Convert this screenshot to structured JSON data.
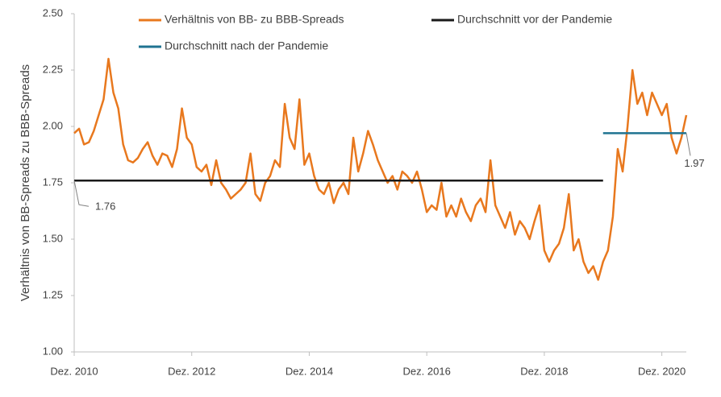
{
  "chart_data": {
    "type": "line",
    "y_label": "Verhältnis von BB-Spreads zu BBB-Spreads",
    "xlim": [
      "2010-12",
      "2021-05"
    ],
    "xticks": [
      {
        "value": "2010-12",
        "label": "Dez. 2010"
      },
      {
        "value": "2012-12",
        "label": "Dez. 2012"
      },
      {
        "value": "2014-12",
        "label": "Dez. 2014"
      },
      {
        "value": "2016-12",
        "label": "Dez. 2016"
      },
      {
        "value": "2018-12",
        "label": "Dez. 2018"
      },
      {
        "value": "2020-12",
        "label": "Dez. 2020"
      }
    ],
    "ylim": [
      1.0,
      2.5
    ],
    "yticks": [
      {
        "value": 1.0,
        "label": "1.00"
      },
      {
        "value": 1.25,
        "label": "1.25"
      },
      {
        "value": 1.5,
        "label": "1.50"
      },
      {
        "value": 1.75,
        "label": "1.75"
      },
      {
        "value": 2.0,
        "label": "2.00"
      },
      {
        "value": 2.25,
        "label": "2.25"
      },
      {
        "value": 2.5,
        "label": "2.50"
      }
    ],
    "x": [
      "2010-12",
      "2011-01",
      "2011-02",
      "2011-03",
      "2011-04",
      "2011-05",
      "2011-06",
      "2011-07",
      "2011-08",
      "2011-09",
      "2011-10",
      "2011-11",
      "2011-12",
      "2012-01",
      "2012-02",
      "2012-03",
      "2012-04",
      "2012-05",
      "2012-06",
      "2012-07",
      "2012-08",
      "2012-09",
      "2012-10",
      "2012-11",
      "2012-12",
      "2013-01",
      "2013-02",
      "2013-03",
      "2013-04",
      "2013-05",
      "2013-06",
      "2013-07",
      "2013-08",
      "2013-09",
      "2013-10",
      "2013-11",
      "2013-12",
      "2014-01",
      "2014-02",
      "2014-03",
      "2014-04",
      "2014-05",
      "2014-06",
      "2014-07",
      "2014-08",
      "2014-09",
      "2014-10",
      "2014-11",
      "2014-12",
      "2015-01",
      "2015-02",
      "2015-03",
      "2015-04",
      "2015-05",
      "2015-06",
      "2015-07",
      "2015-08",
      "2015-09",
      "2015-10",
      "2015-11",
      "2015-12",
      "2016-01",
      "2016-02",
      "2016-03",
      "2016-04",
      "2016-05",
      "2016-06",
      "2016-07",
      "2016-08",
      "2016-09",
      "2016-10",
      "2016-11",
      "2016-12",
      "2017-01",
      "2017-02",
      "2017-03",
      "2017-04",
      "2017-05",
      "2017-06",
      "2017-07",
      "2017-08",
      "2017-09",
      "2017-10",
      "2017-11",
      "2017-12",
      "2018-01",
      "2018-02",
      "2018-03",
      "2018-04",
      "2018-05",
      "2018-06",
      "2018-07",
      "2018-08",
      "2018-09",
      "2018-10",
      "2018-11",
      "2018-12",
      "2019-01",
      "2019-02",
      "2019-03",
      "2019-04",
      "2019-05",
      "2019-06",
      "2019-07",
      "2019-08",
      "2019-09",
      "2019-10",
      "2019-11",
      "2019-12",
      "2020-01",
      "2020-02",
      "2020-03",
      "2020-04",
      "2020-05",
      "2020-06",
      "2020-07",
      "2020-08",
      "2020-09",
      "2020-10",
      "2020-11",
      "2020-12",
      "2021-01",
      "2021-02",
      "2021-03",
      "2021-04",
      "2021-05"
    ],
    "series": [
      {
        "name": "Verhältnis von BB- zu BBB-Spreads",
        "color": "#e8781e",
        "values": [
          1.97,
          1.99,
          1.92,
          1.93,
          1.98,
          2.05,
          2.12,
          2.3,
          2.15,
          2.08,
          1.92,
          1.85,
          1.84,
          1.86,
          1.9,
          1.93,
          1.87,
          1.83,
          1.88,
          1.87,
          1.82,
          1.9,
          2.08,
          1.95,
          1.92,
          1.82,
          1.8,
          1.83,
          1.74,
          1.85,
          1.75,
          1.72,
          1.68,
          1.7,
          1.72,
          1.75,
          1.88,
          1.7,
          1.67,
          1.75,
          1.78,
          1.85,
          1.82,
          2.1,
          1.95,
          1.9,
          2.12,
          1.83,
          1.88,
          1.78,
          1.72,
          1.7,
          1.75,
          1.66,
          1.72,
          1.75,
          1.7,
          1.95,
          1.8,
          1.88,
          1.98,
          1.92,
          1.85,
          1.8,
          1.75,
          1.78,
          1.72,
          1.8,
          1.78,
          1.75,
          1.8,
          1.72,
          1.62,
          1.65,
          1.63,
          1.75,
          1.6,
          1.65,
          1.6,
          1.68,
          1.62,
          1.58,
          1.65,
          1.68,
          1.62,
          1.85,
          1.65,
          1.6,
          1.55,
          1.62,
          1.52,
          1.58,
          1.55,
          1.5,
          1.58,
          1.65,
          1.45,
          1.4,
          1.45,
          1.48,
          1.55,
          1.7,
          1.45,
          1.5,
          1.4,
          1.35,
          1.38,
          1.32,
          1.4,
          1.45,
          1.6,
          1.9,
          1.8,
          2.0,
          2.25,
          2.1,
          2.15,
          2.05,
          2.15,
          2.1,
          2.05,
          2.1,
          1.95,
          1.88,
          1.95,
          2.05
        ]
      }
    ],
    "reference_lines": [
      {
        "name": "Durchschnitt vor der Pandemie",
        "color": "#1a1a1a",
        "value": 1.76,
        "x": [
          "2010-12",
          "2019-12"
        ]
      },
      {
        "name": "Durchschnitt nach der Pandemie",
        "color": "#1f7391",
        "value": 1.97,
        "x": [
          "2019-12",
          "2021-05"
        ]
      }
    ]
  }
}
